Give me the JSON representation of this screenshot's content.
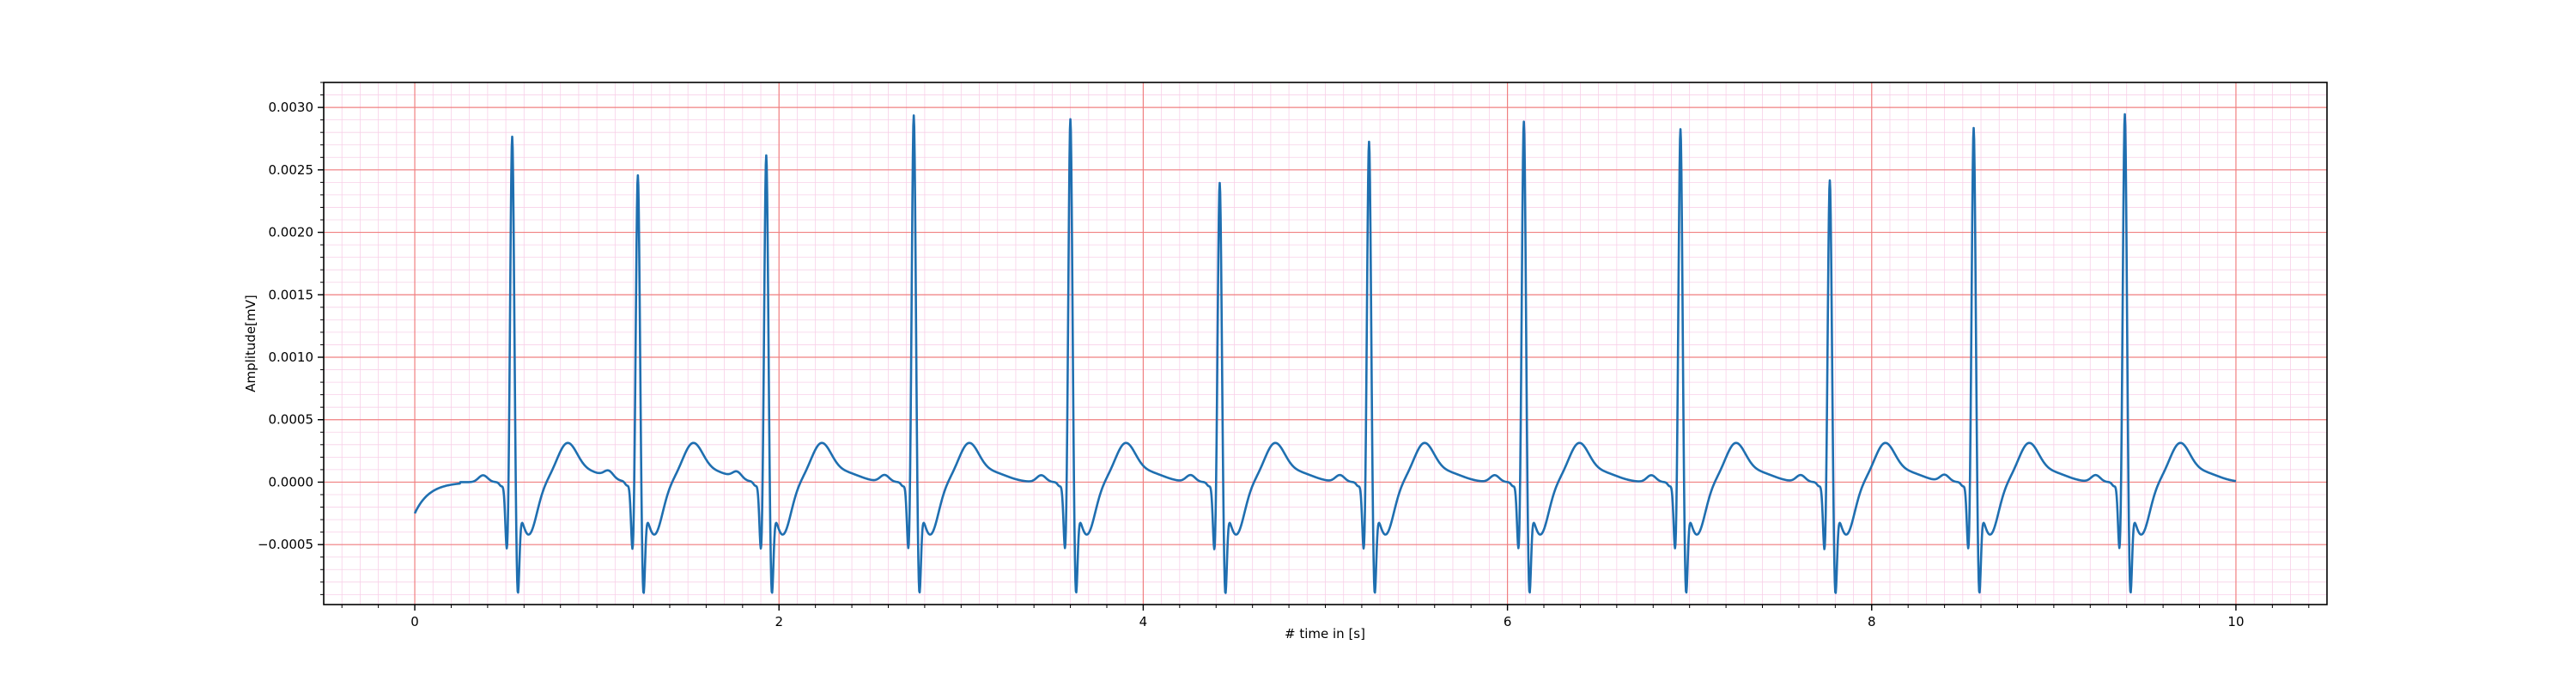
{
  "chart_data": {
    "type": "line",
    "title": "",
    "xlabel": "# time in [s]",
    "ylabel": "Amplitude[mV]",
    "xlim": [
      -0.5,
      10.5
    ],
    "ylim": [
      -0.00098,
      0.0032
    ],
    "x_ticks": [
      0,
      2,
      4,
      6,
      8,
      10
    ],
    "x_tick_labels": [
      "0",
      "2",
      "4",
      "6",
      "8",
      "10"
    ],
    "y_ticks": [
      -0.0005,
      0.0,
      0.0005,
      0.001,
      0.0015,
      0.002,
      0.0025,
      0.003
    ],
    "y_tick_labels": [
      "−0.0005",
      "0.0000",
      "0.0005",
      "0.0010",
      "0.0015",
      "0.0020",
      "0.0025",
      "0.0030"
    ],
    "grid": "ecg-paper (major red, minor pink)",
    "legend": "none",
    "colors": {
      "line": "#1f6fb0",
      "major_grid": "#f08080",
      "minor_grid": "#f8d0e8"
    },
    "series": [
      {
        "start_value": -0.00025,
        "end_value": 0.0,
        "beats": [
          {
            "r_time": 0.535,
            "r_peak": 0.00283
          },
          {
            "r_time": 1.225,
            "r_peak": 0.00252
          },
          {
            "r_time": 1.93,
            "r_peak": 0.00268
          },
          {
            "r_time": 2.74,
            "r_peak": 0.003
          },
          {
            "r_time": 3.6,
            "r_peak": 0.00297
          },
          {
            "r_time": 4.42,
            "r_peak": 0.00246
          },
          {
            "r_time": 5.24,
            "r_peak": 0.00279
          },
          {
            "r_time": 6.09,
            "r_peak": 0.00295
          },
          {
            "r_time": 6.95,
            "r_peak": 0.00289
          },
          {
            "r_time": 7.77,
            "r_peak": 0.00248
          },
          {
            "r_time": 8.56,
            "r_peak": 0.0029
          },
          {
            "r_time": 9.39,
            "r_peak": 0.00301
          }
        ],
        "typical_t_wave_peak": 0.00028,
        "typical_s_trough": -0.00075
      }
    ]
  }
}
